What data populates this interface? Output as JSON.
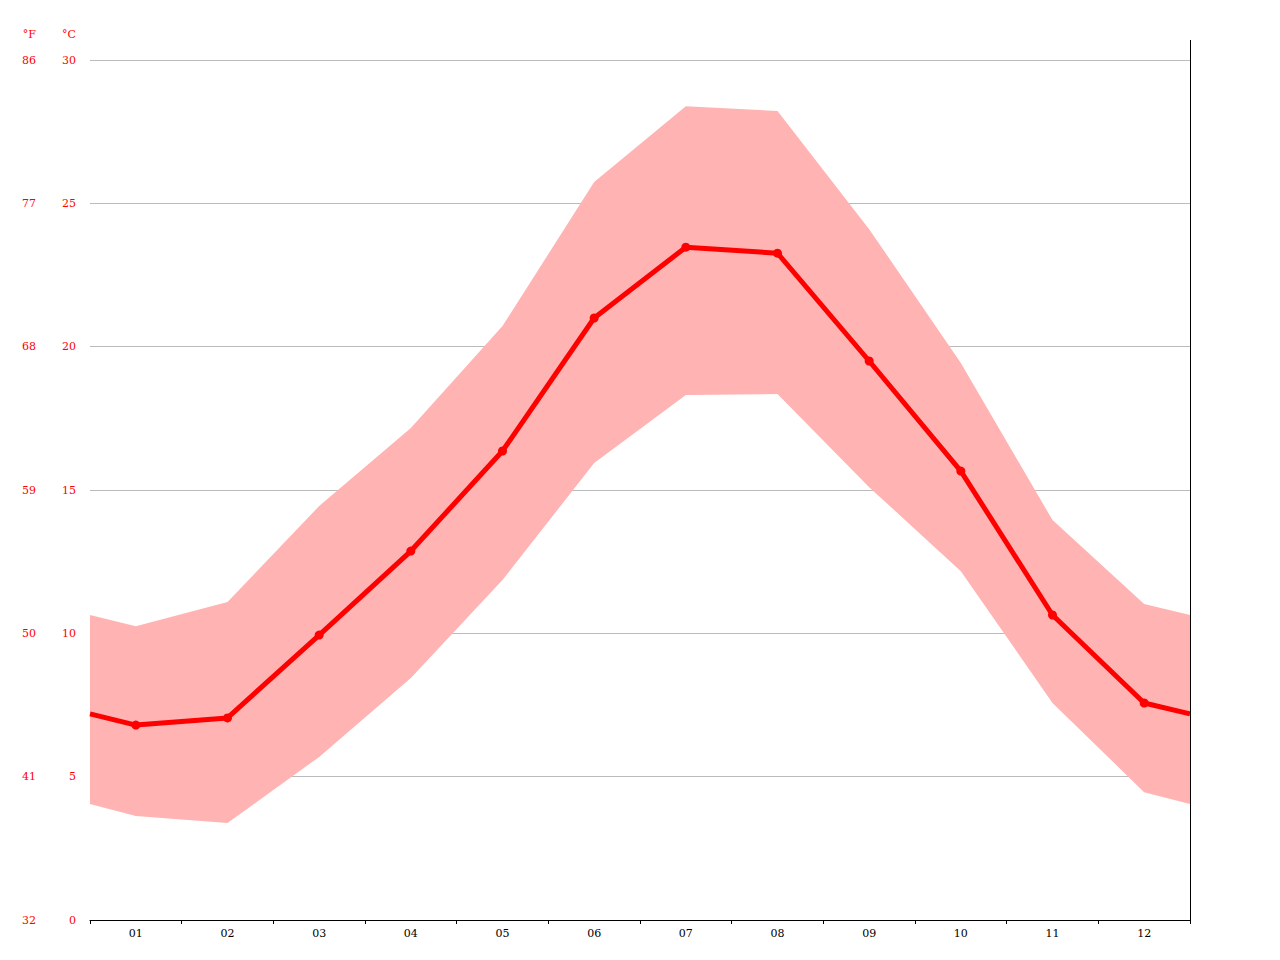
{
  "chart_data": {
    "type": "line",
    "x": [
      0.5,
      1,
      2,
      3,
      4,
      5,
      6,
      7,
      8,
      9,
      10,
      11,
      12,
      12.5
    ],
    "xlim": [
      0.5,
      12.5
    ],
    "xticks": [
      {
        "value": 1,
        "label": "01"
      },
      {
        "value": 2,
        "label": "02"
      },
      {
        "value": 3,
        "label": "03"
      },
      {
        "value": 4,
        "label": "04"
      },
      {
        "value": 5,
        "label": "05"
      },
      {
        "value": 6,
        "label": "06"
      },
      {
        "value": 7,
        "label": "07"
      },
      {
        "value": 8,
        "label": "08"
      },
      {
        "value": 9,
        "label": "09"
      },
      {
        "value": 10,
        "label": "10"
      },
      {
        "value": 11,
        "label": "11"
      },
      {
        "value": 12,
        "label": "12"
      }
    ],
    "y_label": "°C",
    "ylim": [
      0,
      30
    ],
    "yticks": [
      0,
      5,
      10,
      15,
      20,
      25,
      30
    ],
    "y2_label": "°F",
    "y2lim": [
      32,
      86
    ],
    "y2ticks": [
      32,
      41,
      50,
      59,
      68,
      77,
      86
    ],
    "grid": true,
    "series": [
      {
        "type": "area_range",
        "color": "#ffb3b3",
        "low": [
          4.05,
          3.63,
          3.38,
          5.69,
          8.44,
          11.86,
          15.94,
          18.31,
          18.35,
          15.1,
          12.17,
          7.57,
          4.46,
          4.05
        ],
        "high": [
          10.64,
          10.25,
          11.09,
          14.44,
          17.16,
          20.72,
          25.74,
          28.39,
          28.22,
          24.1,
          19.43,
          13.95,
          11.02,
          10.64
        ]
      },
      {
        "type": "line",
        "color": "#ff0000",
        "marker": "circle",
        "values": [
          7.19,
          6.8,
          7.05,
          9.94,
          12.87,
          16.36,
          21.0,
          23.47,
          23.26,
          19.5,
          15.66,
          10.64,
          7.57,
          7.19
        ]
      }
    ]
  }
}
